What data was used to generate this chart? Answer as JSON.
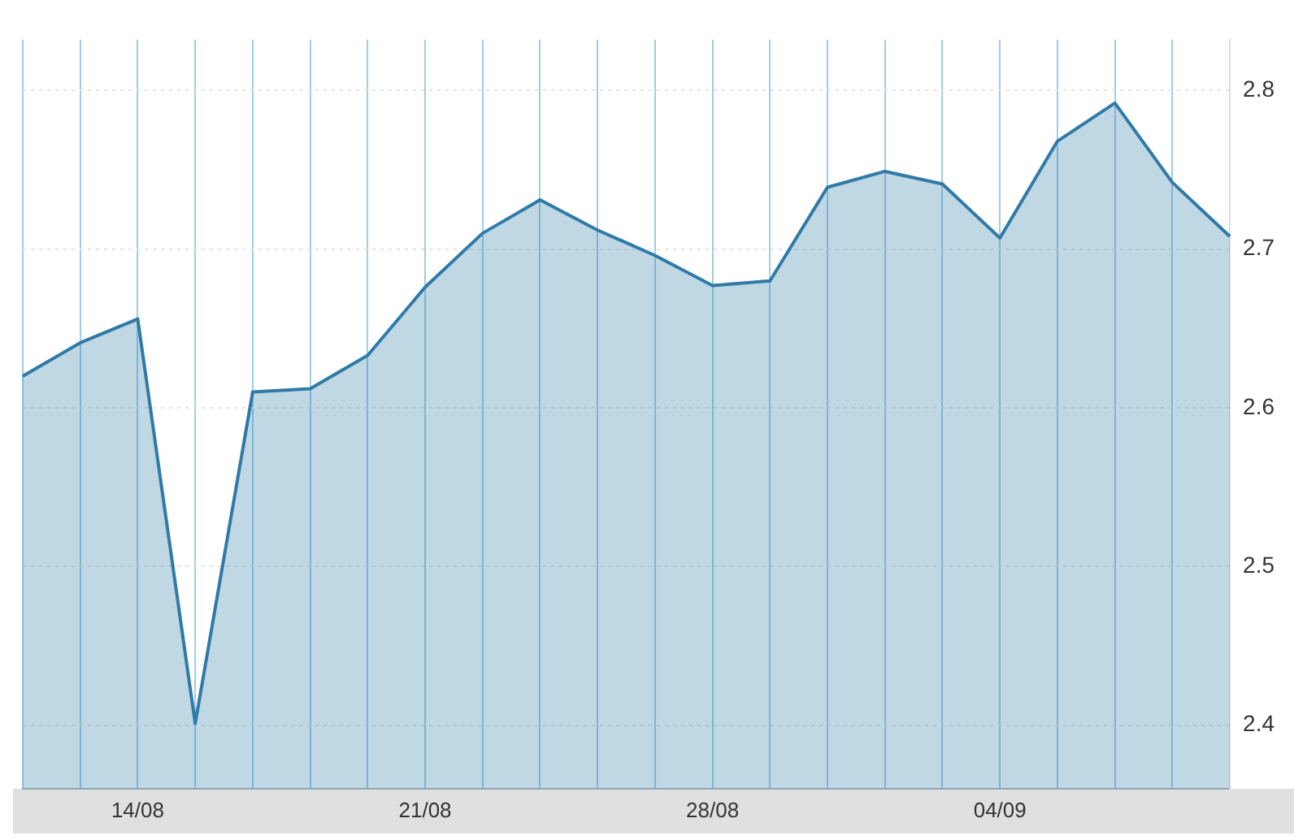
{
  "chart_data": {
    "type": "area",
    "categories": [
      null,
      null,
      "14/08",
      null,
      null,
      null,
      null,
      "21/08",
      null,
      null,
      null,
      null,
      "28/08",
      null,
      null,
      null,
      null,
      "04/09",
      null,
      null,
      null,
      null
    ],
    "series": [
      {
        "color": "#2f7aa6",
        "values": [
          2.62,
          2.641,
          2.656,
          2.401,
          2.61,
          2.612,
          2.633,
          2.676,
          2.71,
          2.731,
          2.712,
          2.696,
          2.677,
          2.68,
          2.739,
          2.749,
          2.741,
          2.707,
          2.768,
          2.792,
          2.742,
          2.708
        ]
      }
    ],
    "ylim": [
      2.36,
      2.832
    ],
    "yticks": [
      2.4,
      2.5,
      2.6,
      2.7,
      2.8
    ],
    "grid": true,
    "legend": false,
    "marker": "none"
  }
}
